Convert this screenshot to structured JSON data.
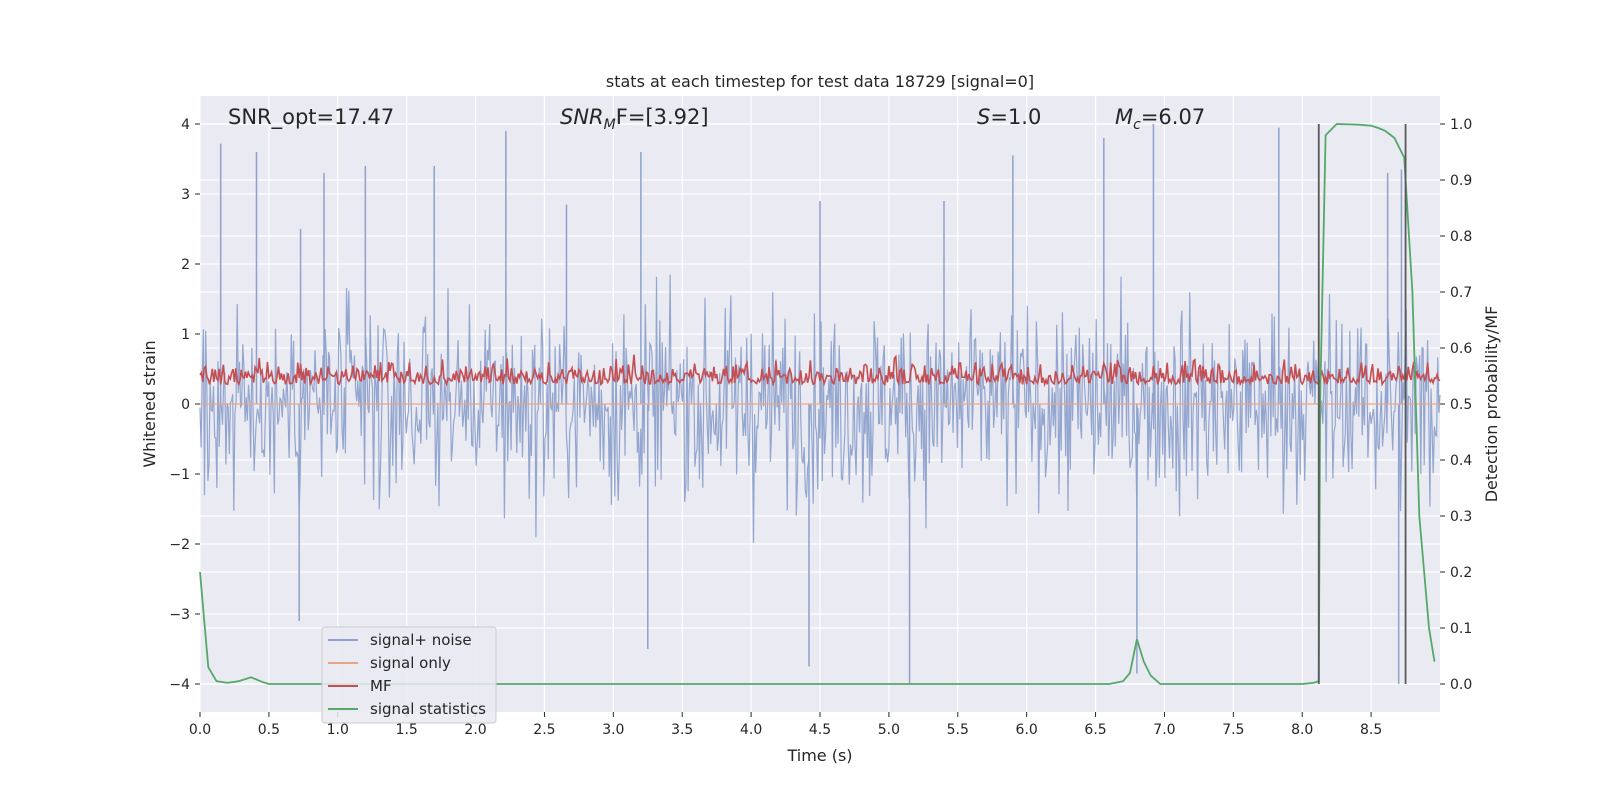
{
  "chart_data": {
    "type": "line",
    "title": "stats at each timestep for test data 18729 [signal=0]",
    "xlabel": "Time (s)",
    "ylabel_left": "Whitened strain",
    "ylabel_right": "Detection probability/MF",
    "xlim": [
      0.0,
      9.0
    ],
    "ylim_left": [
      -4.4,
      4.4
    ],
    "ylim_right": [
      -0.05,
      1.05
    ],
    "xticks": [
      "0.0",
      "0.5",
      "1.0",
      "1.5",
      "2.0",
      "2.5",
      "3.0",
      "3.5",
      "4.0",
      "4.5",
      "5.0",
      "5.5",
      "6.0",
      "6.5",
      "7.0",
      "7.5",
      "8.0",
      "8.5"
    ],
    "xtick_values": [
      0.0,
      0.5,
      1.0,
      1.5,
      2.0,
      2.5,
      3.0,
      3.5,
      4.0,
      4.5,
      5.0,
      5.5,
      6.0,
      6.5,
      7.0,
      7.5,
      8.0,
      8.5
    ],
    "yticks_left": [
      "4",
      "3",
      "2",
      "1",
      "0",
      "−1",
      "−2",
      "−3",
      "−4"
    ],
    "ytick_values_left": [
      4,
      3,
      2,
      1,
      0,
      -1,
      -2,
      -3,
      -4
    ],
    "yticks_right": [
      "1.0",
      "0.9",
      "0.8",
      "0.7",
      "0.6",
      "0.5",
      "0.4",
      "0.3",
      "0.2",
      "0.1",
      "0.0"
    ],
    "ytick_values_right": [
      1.0,
      0.9,
      0.8,
      0.7,
      0.6,
      0.5,
      0.4,
      0.3,
      0.2,
      0.1,
      0.0
    ],
    "annotations": [
      {
        "id": "snr-opt",
        "text": "SNR_opt=17.47"
      },
      {
        "id": "snr-mf",
        "prefix": "SNR",
        "sub": "M",
        "suffix": "F=[3.92]"
      },
      {
        "id": "s-value",
        "prefix": "S",
        "suffix": "=1.0"
      },
      {
        "id": "mc-value",
        "prefix": "M",
        "sub": "c",
        "suffix": "=6.07"
      }
    ],
    "vlines_x": [
      8.12,
      8.75
    ],
    "series": [
      {
        "name": "signal+ noise",
        "color": "#8ea2cc",
        "axis": "left",
        "description": "whitened noise, approx. symmetric, peak amplitude about 3.5 to 4",
        "peaks": [
          {
            "x": 0.15,
            "y": 3.72
          },
          {
            "x": 0.41,
            "y": 3.6
          },
          {
            "x": 0.73,
            "y": 2.5
          },
          {
            "x": 0.9,
            "y": 3.3
          },
          {
            "x": 1.2,
            "y": 3.4
          },
          {
            "x": 1.7,
            "y": 3.4
          },
          {
            "x": 2.22,
            "y": 3.9
          },
          {
            "x": 2.66,
            "y": 2.85
          },
          {
            "x": 3.2,
            "y": 3.6
          },
          {
            "x": 4.5,
            "y": 2.9
          },
          {
            "x": 5.4,
            "y": 2.9
          },
          {
            "x": 5.9,
            "y": 3.55
          },
          {
            "x": 6.56,
            "y": 3.8
          },
          {
            "x": 6.92,
            "y": 4.0
          },
          {
            "x": 7.83,
            "y": 3.95
          },
          {
            "x": 8.62,
            "y": 3.3
          },
          {
            "x": 8.72,
            "y": 3.35
          },
          {
            "x": 3.25,
            "y": -3.5
          },
          {
            "x": 4.42,
            "y": -3.75
          },
          {
            "x": 5.15,
            "y": -4.0
          },
          {
            "x": 6.8,
            "y": -3.85
          },
          {
            "x": 8.7,
            "y": -4.0
          },
          {
            "x": 0.72,
            "y": -3.1
          }
        ]
      },
      {
        "name": "signal only",
        "color": "#e8a385",
        "axis": "left",
        "x": [
          0.0,
          9.0
        ],
        "y": [
          0.0,
          0.0
        ]
      },
      {
        "name": "MF",
        "color": "#c44e52",
        "axis": "right",
        "description": "matched-filter output, fluctuates between about 0.5 and 0.6 on the right axis",
        "range": [
          0.5,
          0.6
        ]
      },
      {
        "name": "signal statistics",
        "color": "#55a868",
        "axis": "right",
        "x": [
          0.0,
          0.06,
          0.12,
          0.2,
          0.28,
          0.37,
          0.45,
          0.5,
          1.0,
          2.0,
          3.0,
          4.0,
          5.0,
          6.0,
          6.6,
          6.7,
          6.75,
          6.8,
          6.85,
          6.9,
          6.97,
          7.5,
          8.0,
          8.08,
          8.12,
          8.13,
          8.17,
          8.25,
          8.4,
          8.5,
          8.55,
          8.6,
          8.67,
          8.74,
          8.8,
          8.85,
          8.92,
          8.96
        ],
        "y": [
          0.2,
          0.03,
          0.005,
          0.002,
          0.005,
          0.012,
          0.004,
          0.0,
          0.0,
          0.0,
          0.0,
          0.0,
          0.0,
          0.0,
          0.0,
          0.005,
          0.02,
          0.08,
          0.04,
          0.015,
          0.0,
          0.0,
          0.0,
          0.002,
          0.005,
          0.5,
          0.98,
          1.0,
          0.999,
          0.997,
          0.993,
          0.988,
          0.975,
          0.94,
          0.7,
          0.3,
          0.1,
          0.04
        ]
      }
    ],
    "legend": {
      "location": "lower-left",
      "entries": [
        "signal+ noise",
        "signal only",
        "MF",
        "signal statistics"
      ]
    }
  },
  "colors": {
    "axes_bg": "#eaeaf2",
    "grid": "#ffffff",
    "text": "#262626",
    "vline": "#595959"
  }
}
